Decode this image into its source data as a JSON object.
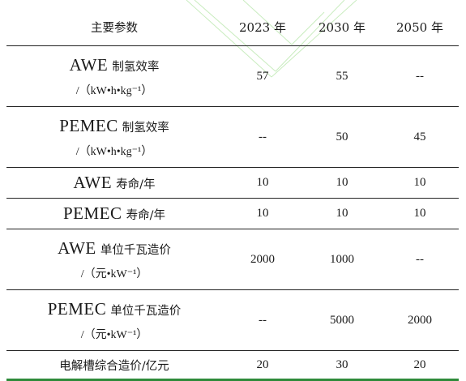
{
  "header": {
    "param": "主要参数",
    "col_2023": "2023 年",
    "col_2030": "2030 年",
    "col_2050": "2050 年"
  },
  "rows": [
    {
      "name_en": "AWE",
      "name_cn": "制氢效率",
      "unit": "/（kW•h•kg⁻¹）",
      "v2023": "57",
      "v2030": "55",
      "v2050": "--"
    },
    {
      "name_en": "PEMEC",
      "name_cn": "制氢效率",
      "unit": "/（kW•h•kg⁻¹）",
      "v2023": "--",
      "v2030": "50",
      "v2050": "45"
    },
    {
      "name_en": "AWE",
      "name_cn": "寿命/年",
      "v2023": "10",
      "v2030": "10",
      "v2050": "10"
    },
    {
      "name_en": "PEMEC",
      "name_cn": "寿命/年",
      "v2023": "10",
      "v2030": "10",
      "v2050": "10"
    },
    {
      "name_en": "AWE",
      "name_cn": "单位千瓦造价",
      "unit": "/（元•kW⁻¹）",
      "v2023": "2000",
      "v2030": "1000",
      "v2050": "--"
    },
    {
      "name_en": "PEMEC",
      "name_cn": "单位千瓦造价",
      "unit": "/（元•kW⁻¹）",
      "v2023": "--",
      "v2030": "5000",
      "v2050": "2000"
    },
    {
      "name_cn": "电解槽综合造价/亿元",
      "v2023": "20",
      "v2030": "30",
      "v2050": "20"
    }
  ],
  "colors": {
    "rule": "#222222",
    "bottom_rule": "#2e8b3a",
    "watermark": "#bfe8b5"
  }
}
